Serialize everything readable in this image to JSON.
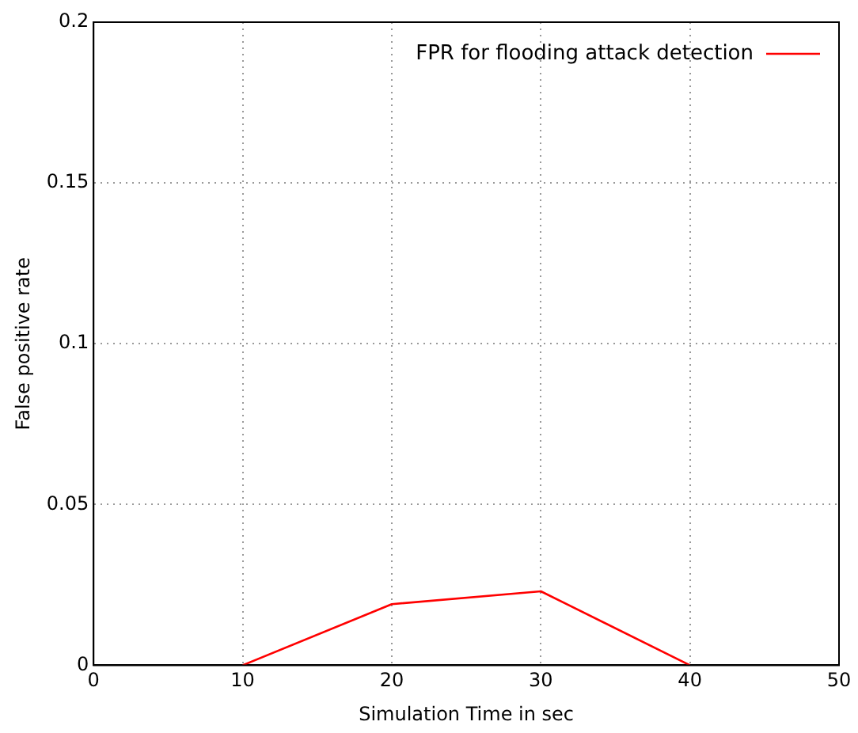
{
  "chart_data": {
    "type": "line",
    "xlabel": "Simulation Time in sec",
    "ylabel": "False positive rate",
    "x": [
      10,
      20,
      30,
      40
    ],
    "series": [
      {
        "name": "FPR for flooding attack detection",
        "color": "#ff0000",
        "values": [
          0,
          0.019,
          0.023,
          0
        ]
      }
    ],
    "xlim": [
      0,
      50
    ],
    "xticks": [
      0,
      10,
      20,
      30,
      40,
      50
    ],
    "ylim": [
      0,
      0.2
    ],
    "yticks": [
      0,
      0.05,
      0.1,
      0.15,
      0.2
    ],
    "grid": true,
    "legend": "top right",
    "marker": "none",
    "line_style": "solid"
  }
}
